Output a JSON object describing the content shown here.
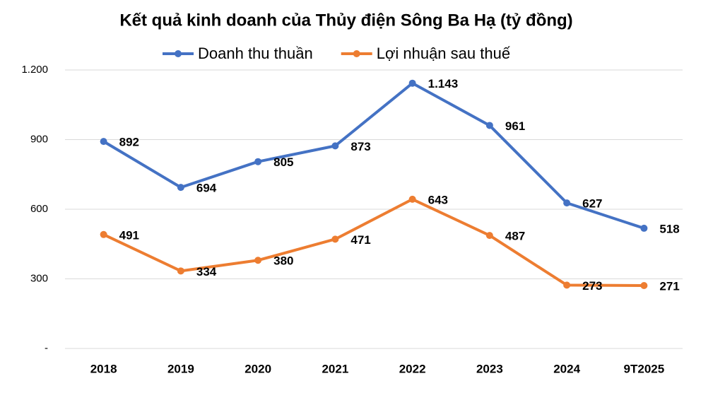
{
  "chart_data": {
    "type": "line",
    "title": "Kết quả kinh doanh của Thủy điện Sông Ba Hạ (tỷ đồng)",
    "categories": [
      "2018",
      "2019",
      "2020",
      "2021",
      "2022",
      "2023",
      "2024",
      "9T2025"
    ],
    "series": [
      {
        "name": "Doanh thu thuần",
        "color": "#4472c4",
        "values": [
          892,
          694,
          805,
          873,
          1143,
          961,
          627,
          518
        ],
        "value_labels": [
          "892",
          "694",
          "805",
          "873",
          "1.143",
          "961",
          "627",
          "518"
        ]
      },
      {
        "name": "Lợi nhuận sau thuế",
        "color": "#ed7d31",
        "values": [
          491,
          334,
          380,
          471,
          643,
          487,
          273,
          271
        ]
      }
    ],
    "ylim": [
      0,
      1200
    ],
    "yticks": [
      {
        "value": 0,
        "label": "-"
      },
      300,
      600,
      900,
      {
        "value": 1200,
        "label": "1.200"
      }
    ],
    "grid": true,
    "legend": "top"
  }
}
